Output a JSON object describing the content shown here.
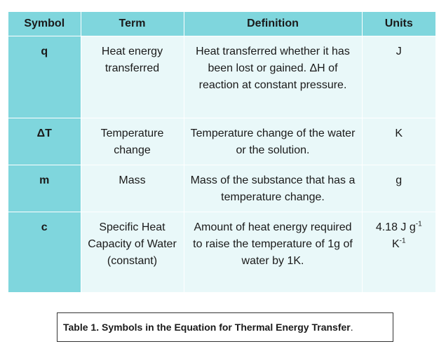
{
  "table": {
    "headers": [
      "Symbol",
      "Term",
      "Definition",
      "Units"
    ],
    "rows": [
      {
        "symbol": "q",
        "term": "Heat energy transferred",
        "definition": "Heat transferred whether it has been lost or gained. ΔH of reaction at constant pressure.",
        "units": "J"
      },
      {
        "symbol": "ΔT",
        "term": "Temperature change",
        "definition": "Temperature change of the water or the solution.",
        "units": "K"
      },
      {
        "symbol": "m",
        "term": "Mass",
        "definition": "Mass of the substance that has a temperature change.",
        "units": "g"
      },
      {
        "symbol": "c",
        "term": "Specific Heat Capacity of Water (constant)",
        "definition": "Amount of heat energy required to raise the temperature of 1g of water by 1K.",
        "units_parts": {
          "a": "4.18 J g",
          "a_sup": "-1",
          "b": "K",
          "b_sup": "-1"
        }
      }
    ]
  },
  "caption": {
    "label": "Table 1. Symbols in the Equation for Thermal Energy Transfer",
    "end": "."
  },
  "colors": {
    "header_bg": "#7fd6dd",
    "cell_bg": "#e9f8f9"
  }
}
